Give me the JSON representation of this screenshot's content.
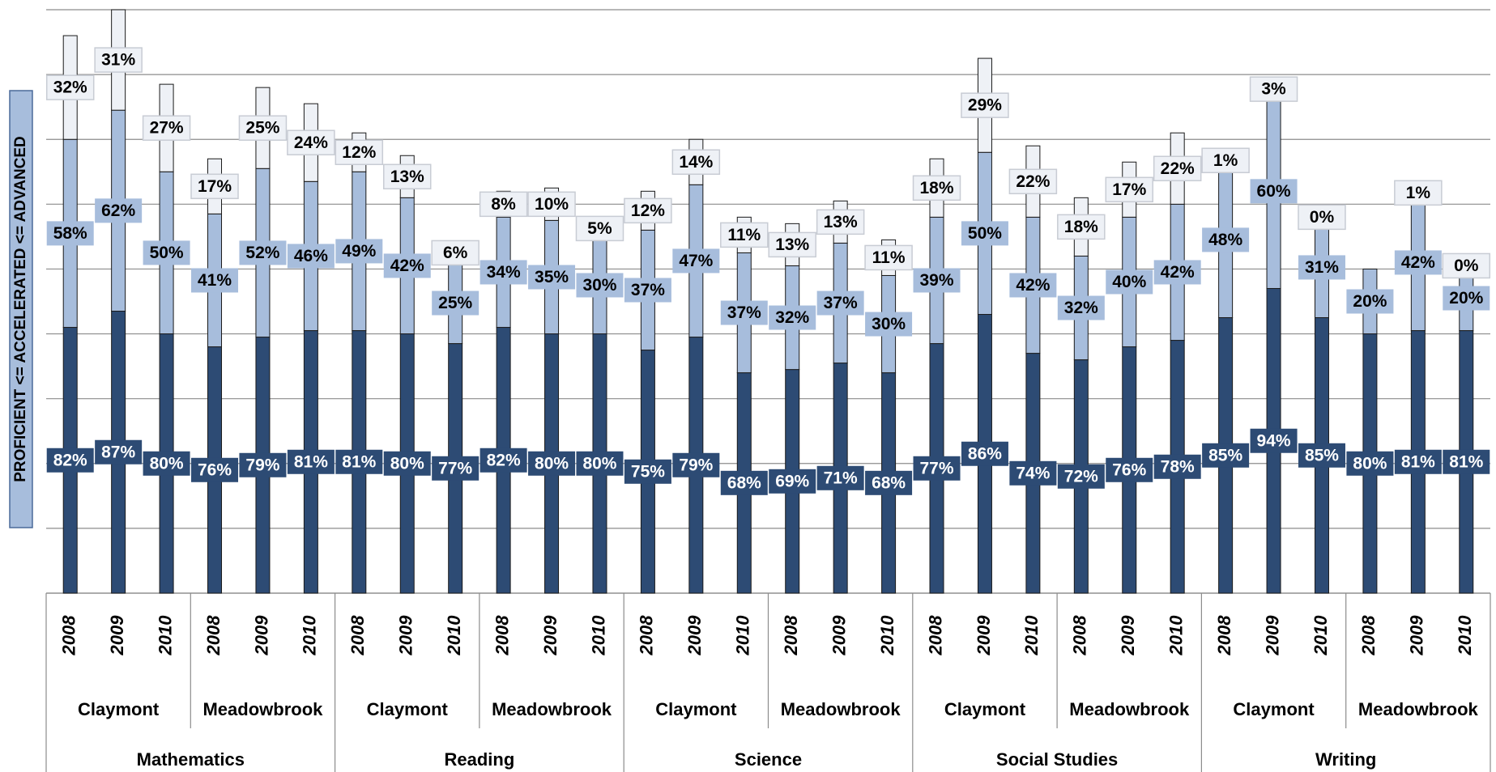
{
  "chart_data": {
    "type": "stacked_bar",
    "y_label": "PROFICIENT <= ACCELERATED <= ADVANCED",
    "categories": [
      "2008",
      "2009",
      "2010",
      "2008",
      "2009",
      "2010",
      "2008",
      "2009",
      "2010",
      "2008",
      "2009",
      "2010",
      "2008",
      "2009",
      "2010",
      "2008",
      "2009",
      "2010",
      "2008",
      "2009",
      "2010",
      "2008",
      "2009",
      "2010",
      "2008",
      "2009",
      "2010",
      "2008",
      "2009",
      "2010"
    ],
    "groups": [
      {
        "label": "Mathematics",
        "subgroups": [
          "Claymont",
          "Meadowbrook"
        ]
      },
      {
        "label": "Reading",
        "subgroups": [
          "Claymont",
          "Meadowbrook"
        ]
      },
      {
        "label": "Science",
        "subgroups": [
          "Claymont",
          "Meadowbrook"
        ]
      },
      {
        "label": "Social Studies",
        "subgroups": [
          "Claymont",
          "Meadowbrook"
        ]
      },
      {
        "label": "Writing",
        "subgroups": [
          "Claymont",
          "Meadowbrook"
        ]
      }
    ],
    "series": [
      {
        "color": "#2d4b74",
        "label_fill": "#2d4b74",
        "label_color": "#ffffff",
        "values": [
          82,
          87,
          80,
          76,
          79,
          81,
          81,
          80,
          77,
          82,
          80,
          80,
          75,
          79,
          68,
          69,
          71,
          68,
          77,
          86,
          74,
          72,
          76,
          78,
          85,
          94,
          85,
          80,
          81,
          81
        ],
        "value_labels": [
          "82%",
          "87%",
          "80%",
          "76%",
          "79%",
          "81%",
          "81%",
          "80%",
          "77%",
          "82%",
          "80%",
          "80%",
          "75%",
          "79%",
          "68%",
          "69%",
          "71%",
          "68%",
          "77%",
          "86%",
          "74%",
          "72%",
          "76%",
          "78%",
          "85%",
          "94%",
          "85%",
          "80%",
          "81%",
          "81%"
        ]
      },
      {
        "color": "#a7bddc",
        "label_fill": "#a7bddc",
        "label_color": "#000000",
        "values": [
          58,
          62,
          50,
          41,
          52,
          46,
          49,
          42,
          25,
          34,
          35,
          30,
          37,
          47,
          37,
          32,
          37,
          30,
          39,
          50,
          42,
          32,
          40,
          42,
          48,
          60,
          31,
          20,
          42,
          20
        ],
        "value_labels": [
          "58%",
          "62%",
          "50%",
          "41%",
          "52%",
          "46%",
          "49%",
          "42%",
          "25%",
          "34%",
          "35%",
          "30%",
          "37%",
          "47%",
          "37%",
          "32%",
          "37%",
          "30%",
          "39%",
          "50%",
          "42%",
          "32%",
          "40%",
          "42%",
          "48%",
          "60%",
          "31%",
          "20%",
          "42%",
          "20%"
        ]
      },
      {
        "color": "#eef1f6",
        "label_fill": "#eef1f6",
        "label_color": "#000000",
        "values": [
          32,
          31,
          27,
          17,
          25,
          24,
          12,
          13,
          6,
          8,
          10,
          5,
          12,
          14,
          11,
          13,
          13,
          11,
          18,
          29,
          22,
          18,
          17,
          22,
          1,
          3,
          0,
          null,
          1,
          0
        ],
        "value_labels": [
          "32%",
          "31%",
          "27%",
          "17%",
          "25%",
          "24%",
          "12%",
          "13%",
          "6%",
          "8%",
          "10%",
          "5%",
          "12%",
          "14%",
          "11%",
          "13%",
          "13%",
          "11%",
          "18%",
          "29%",
          "22%",
          "18%",
          "17%",
          "22%",
          "1%",
          "3%",
          "0%",
          null,
          "1%",
          "0%"
        ]
      }
    ],
    "ylim": [
      0,
      180
    ],
    "yticks": [
      0,
      20,
      40,
      60,
      80,
      100,
      120,
      140,
      160,
      180
    ],
    "grid": true
  }
}
